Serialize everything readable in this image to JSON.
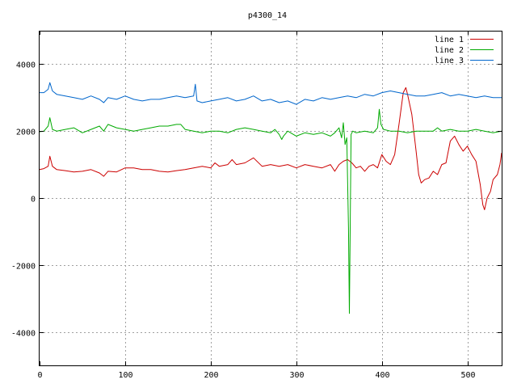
{
  "chart_data": {
    "type": "line",
    "title": "p4300_14",
    "xlabel": "",
    "ylabel": "",
    "xlim": [
      0,
      540
    ],
    "ylim": [
      -5000,
      5000
    ],
    "grid": true,
    "legend_position": "top-right",
    "x_ticks": [
      0,
      100,
      200,
      300,
      400,
      500
    ],
    "x_tick_labels": [
      "0",
      "100",
      "200",
      "300",
      "400",
      "500"
    ],
    "y_ticks": [
      -4000,
      -2000,
      0,
      2000,
      4000
    ],
    "y_tick_labels": [
      "-4000",
      "-2000",
      "0",
      "2000",
      "4000"
    ],
    "series": [
      {
        "name": "line 1",
        "color": "#cc0000",
        "points": [
          [
            0,
            850
          ],
          [
            5,
            880
          ],
          [
            10,
            950
          ],
          [
            12,
            1250
          ],
          [
            15,
            950
          ],
          [
            20,
            850
          ],
          [
            30,
            820
          ],
          [
            40,
            780
          ],
          [
            50,
            800
          ],
          [
            60,
            850
          ],
          [
            70,
            750
          ],
          [
            75,
            650
          ],
          [
            80,
            800
          ],
          [
            90,
            780
          ],
          [
            100,
            900
          ],
          [
            110,
            900
          ],
          [
            120,
            850
          ],
          [
            130,
            850
          ],
          [
            140,
            800
          ],
          [
            150,
            780
          ],
          [
            160,
            820
          ],
          [
            170,
            850
          ],
          [
            180,
            900
          ],
          [
            190,
            950
          ],
          [
            200,
            900
          ],
          [
            205,
            1050
          ],
          [
            210,
            950
          ],
          [
            220,
            1000
          ],
          [
            225,
            1150
          ],
          [
            230,
            1000
          ],
          [
            240,
            1050
          ],
          [
            250,
            1200
          ],
          [
            260,
            950
          ],
          [
            270,
            1000
          ],
          [
            280,
            950
          ],
          [
            290,
            1000
          ],
          [
            300,
            900
          ],
          [
            310,
            1000
          ],
          [
            320,
            950
          ],
          [
            330,
            900
          ],
          [
            340,
            1000
          ],
          [
            345,
            800
          ],
          [
            350,
            1000
          ],
          [
            355,
            1100
          ],
          [
            360,
            1150
          ],
          [
            365,
            1050
          ],
          [
            370,
            900
          ],
          [
            375,
            950
          ],
          [
            380,
            800
          ],
          [
            385,
            950
          ],
          [
            390,
            1000
          ],
          [
            395,
            900
          ],
          [
            400,
            1300
          ],
          [
            405,
            1100
          ],
          [
            410,
            1000
          ],
          [
            415,
            1300
          ],
          [
            420,
            2200
          ],
          [
            425,
            3150
          ],
          [
            428,
            3300
          ],
          [
            430,
            3100
          ],
          [
            435,
            2500
          ],
          [
            440,
            1400
          ],
          [
            443,
            700
          ],
          [
            446,
            450
          ],
          [
            450,
            550
          ],
          [
            455,
            600
          ],
          [
            460,
            800
          ],
          [
            465,
            700
          ],
          [
            470,
            1000
          ],
          [
            475,
            1050
          ],
          [
            480,
            1700
          ],
          [
            485,
            1850
          ],
          [
            490,
            1600
          ],
          [
            495,
            1400
          ],
          [
            500,
            1550
          ],
          [
            505,
            1300
          ],
          [
            510,
            1100
          ],
          [
            515,
            400
          ],
          [
            518,
            -200
          ],
          [
            520,
            -350
          ],
          [
            523,
            0
          ],
          [
            527,
            200
          ],
          [
            530,
            550
          ],
          [
            535,
            700
          ],
          [
            538,
            1000
          ],
          [
            540,
            1350
          ]
        ]
      },
      {
        "name": "line 2",
        "color": "#00aa00",
        "points": [
          [
            0,
            1980
          ],
          [
            5,
            2000
          ],
          [
            10,
            2150
          ],
          [
            12,
            2400
          ],
          [
            15,
            2050
          ],
          [
            20,
            2000
          ],
          [
            30,
            2050
          ],
          [
            40,
            2100
          ],
          [
            50,
            1950
          ],
          [
            60,
            2050
          ],
          [
            70,
            2150
          ],
          [
            75,
            2000
          ],
          [
            80,
            2200
          ],
          [
            90,
            2100
          ],
          [
            100,
            2050
          ],
          [
            110,
            2000
          ],
          [
            120,
            2050
          ],
          [
            130,
            2100
          ],
          [
            140,
            2150
          ],
          [
            150,
            2150
          ],
          [
            160,
            2200
          ],
          [
            165,
            2200
          ],
          [
            170,
            2050
          ],
          [
            180,
            2000
          ],
          [
            190,
            1950
          ],
          [
            200,
            2000
          ],
          [
            210,
            2000
          ],
          [
            220,
            1950
          ],
          [
            230,
            2050
          ],
          [
            240,
            2100
          ],
          [
            250,
            2050
          ],
          [
            260,
            2000
          ],
          [
            270,
            1950
          ],
          [
            275,
            2050
          ],
          [
            280,
            1900
          ],
          [
            283,
            1750
          ],
          [
            285,
            1850
          ],
          [
            290,
            2000
          ],
          [
            300,
            1850
          ],
          [
            310,
            1950
          ],
          [
            320,
            1900
          ],
          [
            330,
            1950
          ],
          [
            340,
            1850
          ],
          [
            345,
            1950
          ],
          [
            350,
            2100
          ],
          [
            353,
            1800
          ],
          [
            355,
            2250
          ],
          [
            357,
            1600
          ],
          [
            359,
            1800
          ],
          [
            361,
            -900
          ],
          [
            362,
            -3450
          ],
          [
            364,
            1900
          ],
          [
            366,
            2000
          ],
          [
            370,
            1950
          ],
          [
            380,
            2000
          ],
          [
            390,
            1950
          ],
          [
            395,
            2100
          ],
          [
            397,
            2650
          ],
          [
            399,
            2200
          ],
          [
            402,
            2050
          ],
          [
            410,
            2000
          ],
          [
            420,
            2000
          ],
          [
            430,
            1950
          ],
          [
            440,
            2000
          ],
          [
            450,
            2000
          ],
          [
            455,
            2000
          ],
          [
            460,
            2000
          ],
          [
            465,
            2100
          ],
          [
            470,
            2000
          ],
          [
            480,
            2050
          ],
          [
            490,
            2000
          ],
          [
            500,
            2000
          ],
          [
            510,
            2050
          ],
          [
            520,
            2000
          ],
          [
            530,
            1950
          ],
          [
            540,
            2000
          ]
        ]
      },
      {
        "name": "line 3",
        "color": "#0066cc",
        "points": [
          [
            0,
            3150
          ],
          [
            5,
            3150
          ],
          [
            10,
            3250
          ],
          [
            12,
            3450
          ],
          [
            15,
            3200
          ],
          [
            20,
            3100
          ],
          [
            30,
            3050
          ],
          [
            40,
            3000
          ],
          [
            50,
            2950
          ],
          [
            60,
            3050
          ],
          [
            70,
            2950
          ],
          [
            75,
            2850
          ],
          [
            80,
            3000
          ],
          [
            90,
            2950
          ],
          [
            100,
            3050
          ],
          [
            110,
            2950
          ],
          [
            120,
            2900
          ],
          [
            130,
            2950
          ],
          [
            140,
            2950
          ],
          [
            150,
            3000
          ],
          [
            160,
            3050
          ],
          [
            170,
            3000
          ],
          [
            180,
            3050
          ],
          [
            182,
            3400
          ],
          [
            184,
            2900
          ],
          [
            190,
            2850
          ],
          [
            200,
            2900
          ],
          [
            210,
            2950
          ],
          [
            220,
            3000
          ],
          [
            230,
            2900
          ],
          [
            240,
            2950
          ],
          [
            250,
            3050
          ],
          [
            260,
            2900
          ],
          [
            270,
            2950
          ],
          [
            280,
            2850
          ],
          [
            290,
            2900
          ],
          [
            300,
            2800
          ],
          [
            310,
            2950
          ],
          [
            320,
            2900
          ],
          [
            330,
            3000
          ],
          [
            340,
            2950
          ],
          [
            350,
            3000
          ],
          [
            360,
            3050
          ],
          [
            370,
            3000
          ],
          [
            380,
            3100
          ],
          [
            390,
            3050
          ],
          [
            400,
            3150
          ],
          [
            410,
            3200
          ],
          [
            420,
            3150
          ],
          [
            430,
            3100
          ],
          [
            440,
            3050
          ],
          [
            450,
            3050
          ],
          [
            460,
            3100
          ],
          [
            470,
            3150
          ],
          [
            480,
            3050
          ],
          [
            490,
            3100
          ],
          [
            500,
            3050
          ],
          [
            510,
            3000
          ],
          [
            520,
            3050
          ],
          [
            530,
            3000
          ],
          [
            540,
            3000
          ]
        ]
      }
    ]
  }
}
